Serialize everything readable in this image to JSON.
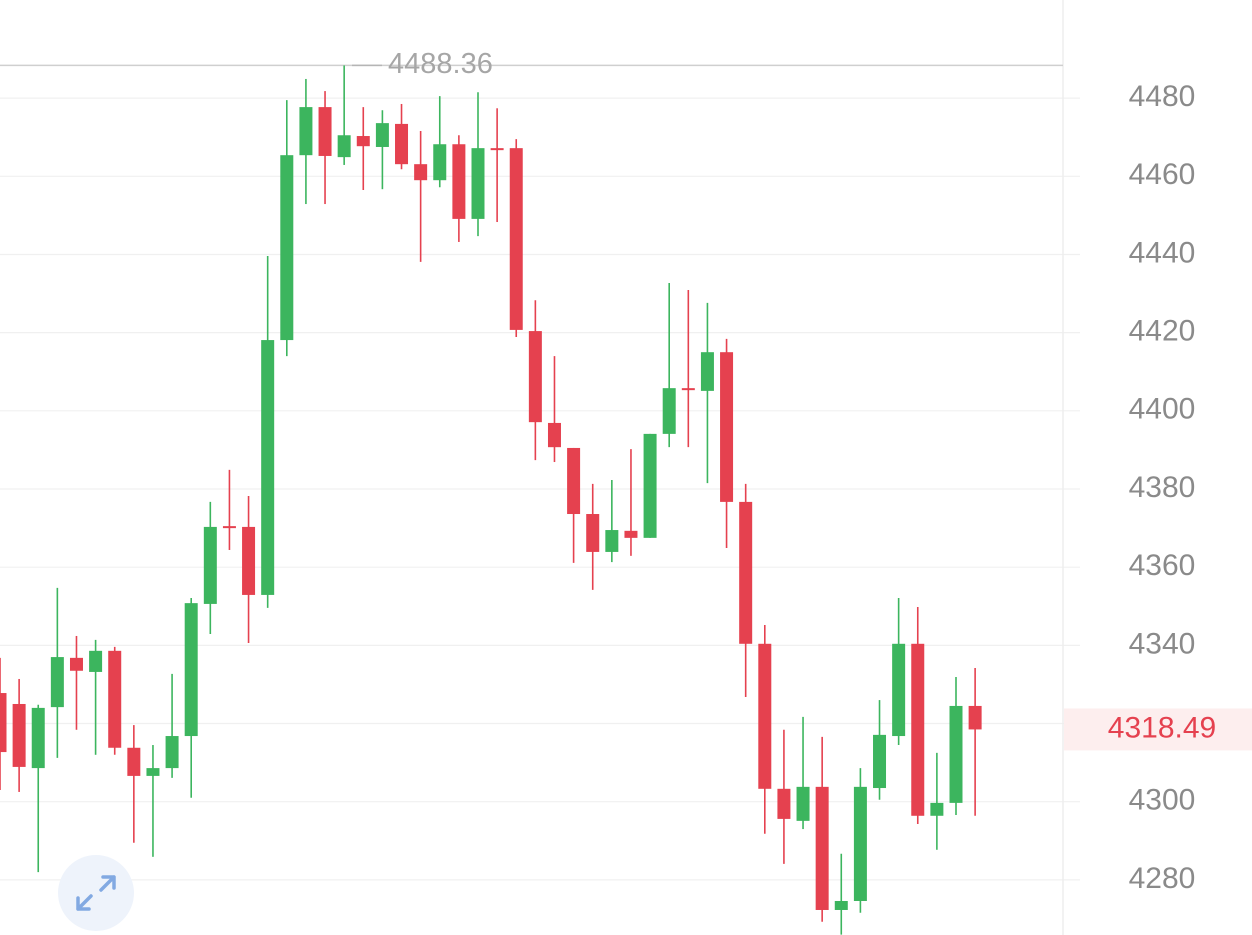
{
  "chart_data": {
    "type": "candlestick",
    "up_color": "#3cb55e",
    "down_color": "#e5414f",
    "open": [
      4327.8,
      4325.0,
      4308.6,
      4324.2,
      4336.8,
      4333.2,
      4338.6,
      4313.8,
      4306.6,
      4308.6,
      4316.8,
      4350.6,
      4370.5,
      4370.3,
      4352.9,
      4418.1,
      4465.4,
      4477.7,
      4464.9,
      4470.3,
      4467.5,
      4473.4,
      4463.1,
      4459.0,
      4468.2,
      4449.1,
      4467.2,
      4467.2,
      4420.4,
      4396.9,
      4390.5,
      4373.6,
      4363.9,
      4369.3,
      4367.5,
      4394.1,
      4405.8,
      4405.1,
      4415.0,
      4376.7,
      4340.4,
      4303.3,
      4295.1,
      4303.8,
      4272.3,
      4274.6,
      4303.5,
      4316.8,
      4340.4,
      4296.4,
      4299.7,
      4324.5
    ],
    "high": [
      4336.8,
      4331.4,
      4324.8,
      4354.7,
      4342.4,
      4341.4,
      4339.6,
      4319.6,
      4314.5,
      4332.7,
      4352.1,
      4376.7,
      4384.9,
      4378.2,
      4439.6,
      4479.5,
      4484.9,
      4481.8,
      4488.36,
      4477.7,
      4476.9,
      4478.5,
      4471.6,
      4480.5,
      4470.5,
      4481.5,
      4477.4,
      4469.5,
      4428.3,
      4414.0,
      4390.5,
      4381.3,
      4382.3,
      4390.2,
      4394.1,
      4432.7,
      4430.9,
      4427.6,
      4418.4,
      4381.3,
      4345.2,
      4318.4,
      4321.7,
      4316.6,
      4286.7,
      4308.6,
      4326.0,
      4352.1,
      4349.8,
      4312.5,
      4331.9,
      4334.2
    ],
    "low": [
      4303.0,
      4302.5,
      4282.0,
      4311.2,
      4318.4,
      4312.0,
      4312.0,
      4289.5,
      4285.9,
      4306.1,
      4301.0,
      4342.9,
      4364.4,
      4340.6,
      4349.6,
      4414.0,
      4452.9,
      4452.9,
      4462.9,
      4456.5,
      4456.7,
      4461.8,
      4438.1,
      4457.2,
      4443.2,
      4444.7,
      4448.3,
      4418.9,
      4387.4,
      4386.9,
      4361.1,
      4354.2,
      4361.3,
      4362.9,
      4367.5,
      4390.7,
      4390.7,
      4381.5,
      4364.9,
      4326.8,
      4291.8,
      4284.1,
      4293.0,
      4269.3,
      4266.0,
      4271.6,
      4300.5,
      4314.5,
      4294.3,
      4287.7,
      4296.6,
      4296.4
    ],
    "close": [
      4312.7,
      4308.9,
      4324.0,
      4337.0,
      4333.5,
      4338.6,
      4313.8,
      4306.6,
      4308.6,
      4316.8,
      4350.8,
      4370.3,
      4370.0,
      4352.9,
      4418.1,
      4465.4,
      4477.7,
      4465.2,
      4470.5,
      4467.7,
      4473.6,
      4463.1,
      4459.0,
      4468.2,
      4449.1,
      4467.2,
      4466.9,
      4420.7,
      4397.1,
      4390.7,
      4373.6,
      4363.9,
      4369.5,
      4367.5,
      4394.1,
      4405.8,
      4405.3,
      4415.0,
      4376.7,
      4340.4,
      4303.3,
      4295.6,
      4303.8,
      4272.3,
      4274.6,
      4303.8,
      4317.1,
      4340.4,
      4296.4,
      4299.7,
      4324.5,
      4318.49
    ],
    "ylim": [
      4265.9,
      4505.1
    ],
    "yticks": [
      4280,
      4300,
      4320,
      4340,
      4360,
      4380,
      4400,
      4420,
      4440,
      4460,
      4480
    ],
    "ytick_labels_shown": [
      4280,
      4300,
      4340,
      4360,
      4380,
      4400,
      4420,
      4440,
      4460,
      4480
    ],
    "grid": true,
    "high_marker": 4488.36,
    "last_price": 4318.49
  }
}
